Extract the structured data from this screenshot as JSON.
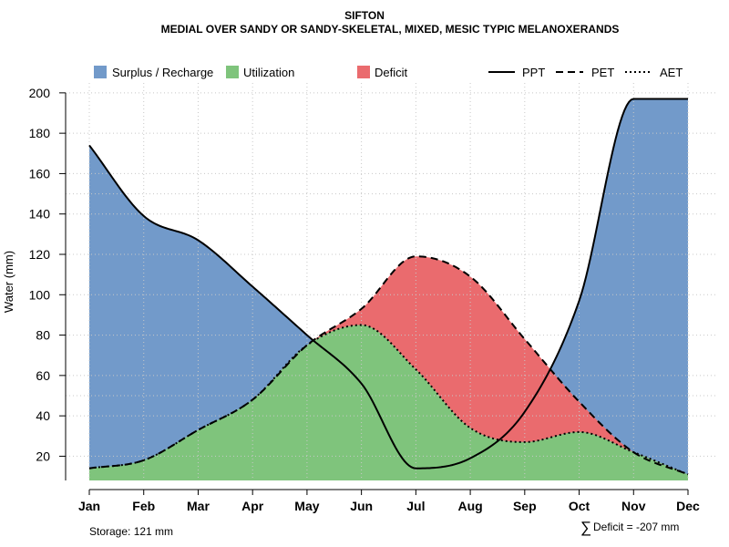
{
  "chart_data": {
    "type": "area",
    "title": "SIFTON",
    "subtitle": "MEDIAL OVER SANDY OR SANDY-SKELETAL, MIXED, MESIC TYPIC MELANOXERANDS",
    "xlabel": "",
    "ylabel": "Water (mm)",
    "categories": [
      "Jan",
      "Feb",
      "Mar",
      "Apr",
      "May",
      "Jun",
      "Jul",
      "Aug",
      "Sep",
      "Oct",
      "Nov",
      "Dec"
    ],
    "yticks": [
      20,
      40,
      60,
      80,
      100,
      120,
      140,
      160,
      180,
      200
    ],
    "ylim": [
      8,
      204
    ],
    "grid": true,
    "series": [
      {
        "name": "PPT",
        "style": "solid",
        "values": [
          174,
          139,
          127,
          104,
          80,
          56,
          14,
          19,
          42,
          97,
          197,
          197
        ]
      },
      {
        "name": "PET",
        "style": "dashed",
        "values": [
          14,
          18,
          33,
          48,
          75,
          93,
          119,
          109,
          78,
          47,
          22,
          11
        ]
      },
      {
        "name": "AET",
        "style": "dotted",
        "values": [
          14,
          18,
          33,
          48,
          75,
          85,
          63,
          34,
          27,
          32,
          22,
          11
        ]
      }
    ],
    "areas": [
      {
        "name": "Surplus / Recharge",
        "color": "#729ACA"
      },
      {
        "name": "Utilization",
        "color": "#7FC47C"
      },
      {
        "name": "Deficit",
        "color": "#EA6B6E"
      }
    ],
    "legend": "top",
    "annotations": {
      "storage": "Storage: 121 mm",
      "deficit_symbol": "∑",
      "deficit": "Deficit = -207 mm"
    }
  }
}
